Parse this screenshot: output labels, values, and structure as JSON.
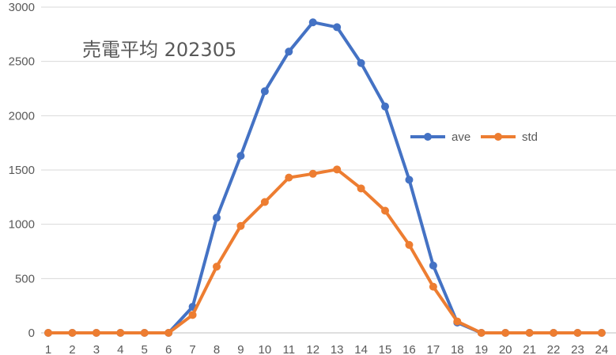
{
  "chart_data": {
    "type": "line",
    "title": "売電平均 202305",
    "xlabel": "",
    "ylabel": "",
    "categories": [
      "1",
      "2",
      "3",
      "4",
      "5",
      "6",
      "7",
      "8",
      "9",
      "10",
      "11",
      "12",
      "13",
      "14",
      "15",
      "16",
      "17",
      "18",
      "19",
      "20",
      "21",
      "22",
      "23",
      "24"
    ],
    "ylim": [
      0,
      3000
    ],
    "yticks": [
      0,
      500,
      1000,
      1500,
      2000,
      2500,
      3000
    ],
    "grid": true,
    "legend_position": "right",
    "series": [
      {
        "name": "ave",
        "color": "#4472C4",
        "values": [
          0,
          0,
          0,
          0,
          0,
          0,
          240,
          1060,
          1630,
          2225,
          2590,
          2860,
          2815,
          2485,
          2085,
          1410,
          620,
          95,
          0,
          0,
          0,
          0,
          0,
          0
        ]
      },
      {
        "name": "std",
        "color": "#ED7D31",
        "values": [
          0,
          0,
          0,
          0,
          0,
          0,
          165,
          610,
          985,
          1205,
          1430,
          1465,
          1505,
          1330,
          1125,
          810,
          425,
          105,
          0,
          0,
          0,
          0,
          0,
          0
        ]
      }
    ]
  }
}
